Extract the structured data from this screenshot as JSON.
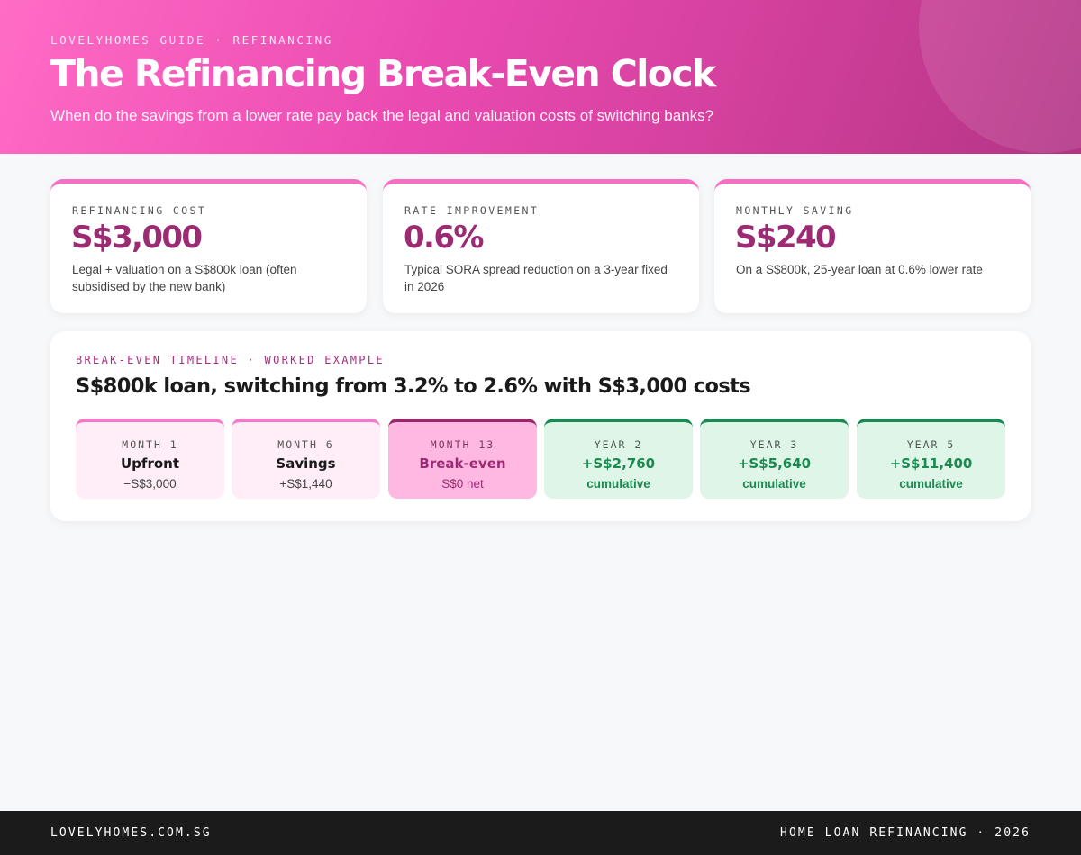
{
  "header": {
    "kicker": "LOVELYHOMES GUIDE · REFINANCING",
    "title": "The Refinancing Break-Even Clock",
    "subtitle": "When do the savings from a lower rate pay back the legal and valuation costs of switching banks?"
  },
  "stats": [
    {
      "label": "REFINANCING COST",
      "value": "S$3,000",
      "description": "Legal + valuation on a S$800k loan (often subsidised by the new bank)"
    },
    {
      "label": "RATE IMPROVEMENT",
      "value": "0.6%",
      "description": "Typical SORA spread reduction on a 3-year fixed in 2026"
    },
    {
      "label": "MONTHLY SAVING",
      "value": "S$240",
      "description": "On a S$800k, 25-year loan at 0.6% lower rate"
    }
  ],
  "timeline": {
    "kicker": "BREAK-EVEN TIMELINE · WORKED EXAMPLE",
    "heading": "S$800k loan, switching from 3.2% to 2.6% with S$3,000 costs",
    "steps": [
      {
        "label": "MONTH 1",
        "title": "Upfront",
        "sub": "−S$3,000"
      },
      {
        "label": "MONTH 6",
        "title": "Savings",
        "sub": "+S$1,440"
      },
      {
        "label": "MONTH 13",
        "title": "Break-even",
        "sub": "S$0 net"
      },
      {
        "label": "YEAR 2",
        "title": "+S$2,760",
        "sub": "cumulative"
      },
      {
        "label": "YEAR 3",
        "title": "+S$5,640",
        "sub": "cumulative"
      },
      {
        "label": "YEAR 5",
        "title": "+S$11,400",
        "sub": "cumulative"
      }
    ]
  },
  "footer": {
    "left": "LOVELYHOMES.COM.SG",
    "right": "HOME LOAN REFINANCING · 2026"
  },
  "colors": {
    "brand_pink": "#ea4ab0",
    "brand_magenta": "#9b2c74",
    "positive_green": "#1b8a51",
    "footer_bg": "#1b1b1b"
  }
}
